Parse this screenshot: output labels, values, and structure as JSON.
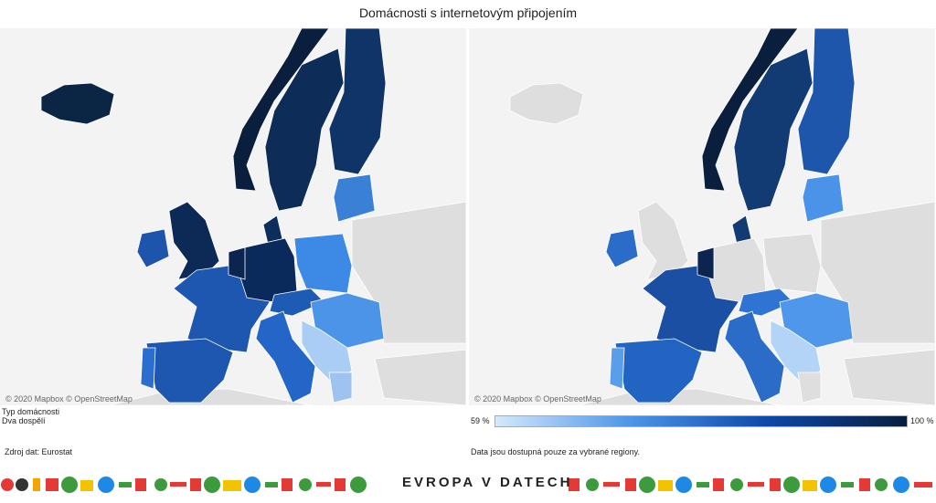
{
  "header": {
    "title": "Domácnosti s internetovým připojením"
  },
  "maps": [
    {
      "attribution": "© 2020 Mapbox © OpenStreetMap"
    },
    {
      "attribution": "© 2020 Mapbox © OpenStreetMap"
    }
  ],
  "filter": {
    "label": "Typ domácnosti",
    "value": "Dva dospělí"
  },
  "legend": {
    "min": "59 %",
    "max": "100 %"
  },
  "notes": {
    "source": "Zdroj dat: Eurostat",
    "availability": "Data jsou dostupná pouze za vybrané regiony."
  },
  "logo": {
    "text": "EVROPA V DATECH"
  }
}
